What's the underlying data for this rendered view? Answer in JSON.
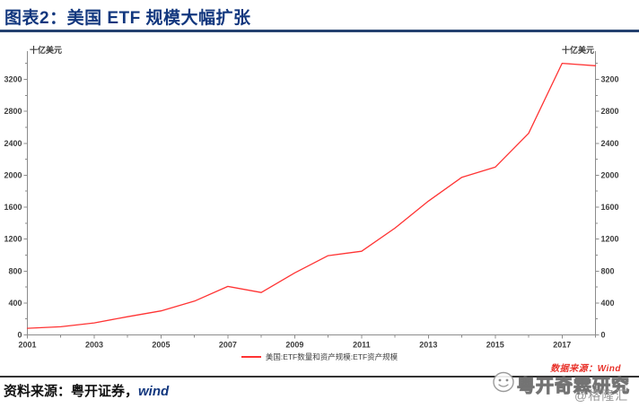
{
  "header": {
    "title": "图表2：美国 ETF 规模大幅扩张"
  },
  "axis_units": {
    "left": "十亿美元",
    "right": "十亿美元"
  },
  "legend": {
    "label": "美国:ETF数量和资产规模:ETF资产规模"
  },
  "footer": {
    "source_prefix": "资料来源：粤开证券，",
    "source_wind": "wind"
  },
  "watermarks": {
    "data_source": "数据来源：Wind",
    "brand": "粤开奇霖研究",
    "platform": "@格隆汇",
    "face_icon": "smiley-doodle-icon"
  },
  "colors": {
    "title_navy": "#12377e",
    "line_red": "#ff3333",
    "watermark_red": "#e8322a",
    "axis_gray": "#8c8c8c",
    "tick_label": "#3d3d3d"
  },
  "chart_data": {
    "type": "line",
    "title": "",
    "xlabel": "",
    "ylabel": "十亿美元",
    "x": [
      2001,
      2002,
      2003,
      2004,
      2005,
      2006,
      2007,
      2008,
      2009,
      2010,
      2011,
      2012,
      2013,
      2014,
      2015,
      2016,
      2017,
      2018
    ],
    "values": [
      83,
      102,
      151,
      228,
      301,
      423,
      608,
      531,
      777,
      992,
      1048,
      1337,
      1675,
      1974,
      2101,
      2524,
      3401,
      3371
    ],
    "series_name": "美国:ETF数量和资产规模:ETF资产规模",
    "ylim": [
      0,
      3550
    ],
    "ytick_major_step": 400,
    "ytick_minor_step": 200,
    "y_tick_labels": [
      "0",
      "400",
      "800",
      "1200",
      "1600",
      "2000",
      "2400",
      "2800",
      "3200"
    ],
    "x_tick_labels": [
      "2001",
      "2003",
      "2005",
      "2007",
      "2009",
      "2011",
      "2013",
      "2015",
      "2017"
    ],
    "grid": false,
    "legend_position": "bottom-center",
    "line_color": "#ff3333"
  }
}
